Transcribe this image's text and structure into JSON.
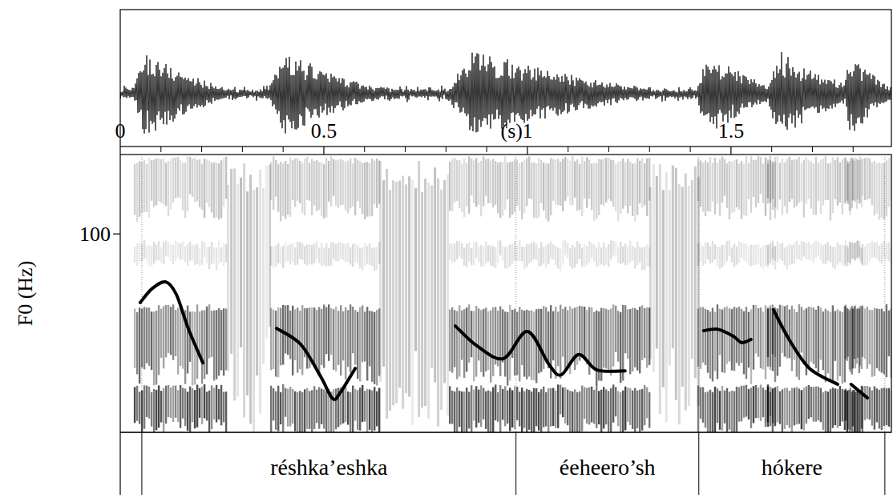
{
  "chart_data": {
    "type": "line",
    "y_label": "F0 (Hz)",
    "x_unit_label": "(s)",
    "color": "#000000",
    "xlim": [
      0,
      1.894
    ],
    "xticks": [
      0,
      0.5,
      1,
      1.5
    ],
    "xminor_ticks": [
      0.1,
      0.2,
      0.3,
      0.4,
      0.6,
      0.7,
      0.8,
      0.9,
      1.1,
      1.2,
      1.3,
      1.4,
      1.6,
      1.7,
      1.8
    ],
    "ylim": [
      50,
      120
    ],
    "yticks": [
      100
    ],
    "x": [
      0.049,
      0.079,
      0.112,
      0.138,
      0.167,
      0.203,
      null,
      0.384,
      0.443,
      0.492,
      0.522,
      0.541,
      0.577,
      null,
      0.823,
      0.876,
      0.941,
      1.0,
      1.053,
      1.083,
      1.126,
      1.171,
      1.24,
      null,
      1.433,
      1.467,
      1.506,
      1.526,
      1.549,
      null,
      1.604,
      1.644,
      1.693,
      1.762,
      null,
      1.795,
      1.835
    ],
    "values": [
      82.7,
      86.3,
      87.9,
      84.7,
      76.2,
      67.5,
      null,
      76.2,
      72.2,
      64.1,
      58.5,
      60.1,
      66.1,
      null,
      76.8,
      71.8,
      68.6,
      75.4,
      67.1,
      64.5,
      69.6,
      65.7,
      65.5,
      null,
      75.6,
      76.0,
      74.2,
      72.6,
      73.4,
      null,
      80.9,
      73.2,
      66.1,
      62.1,
      null,
      62.1,
      58.7
    ],
    "segments": {
      "labels": [
        "réshka’eshka",
        "éeheero’sh",
        "hókere"
      ],
      "boundaries": [
        0.053,
        0.972,
        1.421,
        1.878
      ]
    }
  }
}
